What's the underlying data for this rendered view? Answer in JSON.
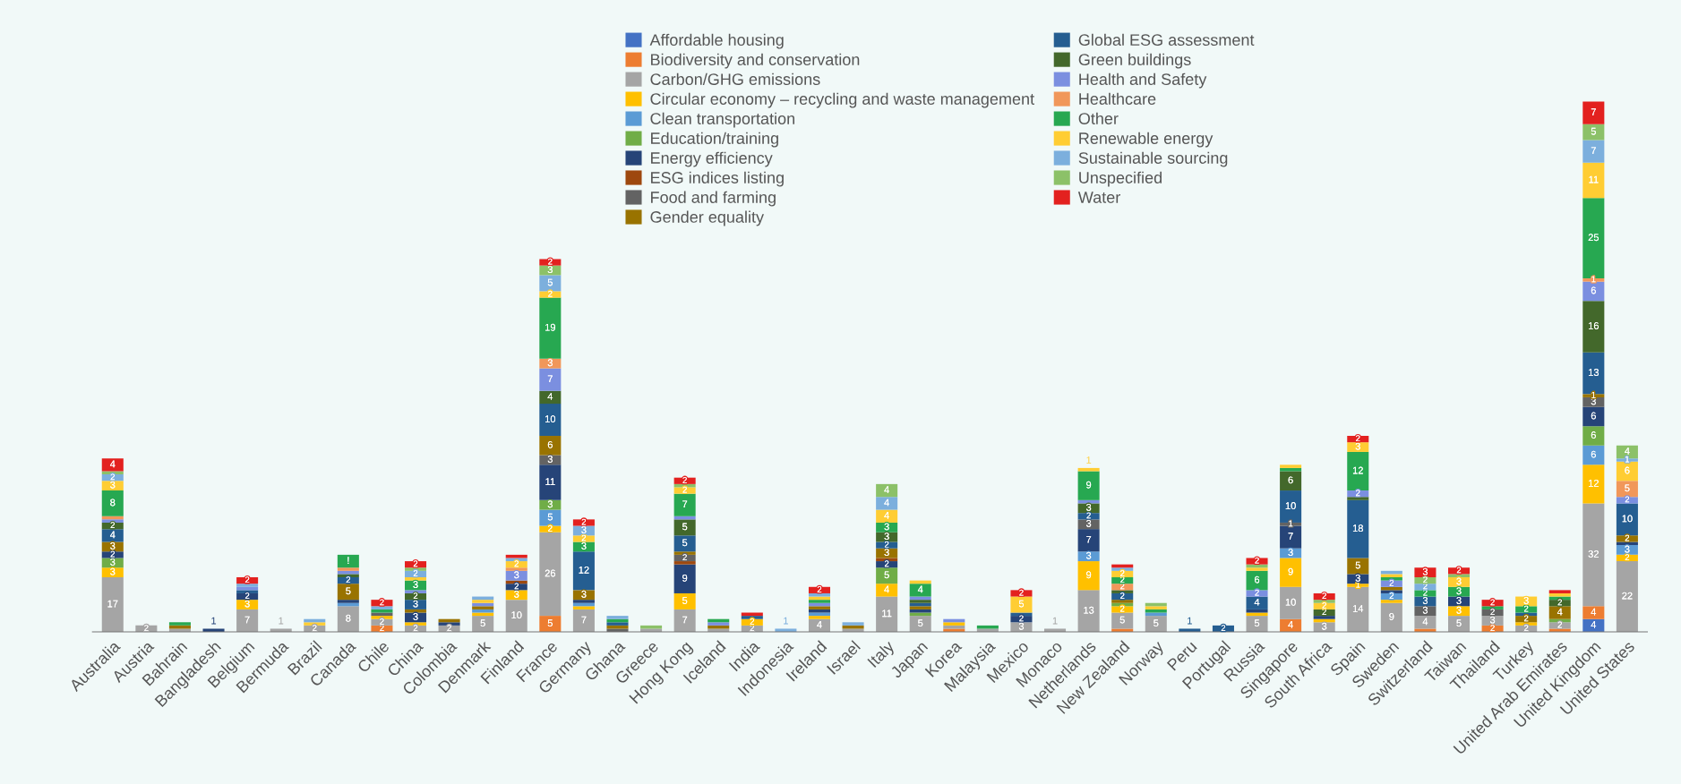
{
  "chart_data": {
    "type": "bar",
    "stacked": true,
    "legend": "top",
    "categories": [
      "Australia",
      "Austria",
      "Bahrain",
      "Bangladesh",
      "Belgium",
      "Bermuda",
      "Brazil",
      "Canada",
      "Chile",
      "China",
      "Colombia",
      "Denmark",
      "Finland",
      "France",
      "Germany",
      "Ghana",
      "Greece",
      "Hong Kong",
      "Iceland",
      "India",
      "Indonesia",
      "Ireland",
      "Israel",
      "Italy",
      "Japan",
      "Korea",
      "Malaysia",
      "Mexico",
      "Monaco",
      "Netherlands",
      "New Zealand",
      "Norway",
      "Peru",
      "Portugal",
      "Russia",
      "Singapore",
      "South Africa",
      "Spain",
      "Sweden",
      "Switzerland",
      "Taiwan",
      "Thailand",
      "Turkey",
      "United Arab Emirates",
      "United Kingdom",
      "United States"
    ],
    "series": [
      {
        "name": "Affordable housing",
        "color": "#4472c4",
        "values": [
          0,
          0,
          0,
          0,
          0,
          0,
          0,
          0,
          0,
          0,
          0,
          0,
          0,
          0,
          0,
          0,
          0,
          0,
          0,
          0,
          0,
          0,
          0,
          0,
          0,
          0,
          0,
          0,
          0,
          0,
          0,
          0,
          0,
          0,
          0,
          0,
          0,
          0,
          0,
          0,
          0,
          0,
          0,
          0,
          4,
          0
        ],
        "value_labels": [
          null,
          null,
          null,
          null,
          null,
          null,
          null,
          null,
          null,
          null,
          null,
          null,
          null,
          null,
          null,
          null,
          null,
          null,
          null,
          null,
          null,
          null,
          null,
          null,
          null,
          null,
          null,
          null,
          null,
          null,
          null,
          null,
          null,
          null,
          null,
          null,
          null,
          null,
          null,
          null,
          null,
          null,
          null,
          null,
          "4",
          null
        ]
      },
      {
        "name": "Biodiversity and conservation",
        "color": "#ed7d31",
        "values": [
          0,
          0,
          0,
          0,
          0,
          0,
          0,
          0,
          2,
          0,
          0,
          0,
          0,
          5,
          0,
          0,
          0,
          0,
          0,
          0,
          0,
          0,
          0,
          0,
          0,
          1,
          0,
          0,
          0,
          0,
          1,
          0,
          0,
          0,
          0,
          4,
          0,
          0,
          0,
          1,
          0,
          2,
          0,
          1,
          4,
          0
        ],
        "value_labels": [
          null,
          null,
          null,
          null,
          null,
          null,
          null,
          null,
          "2",
          null,
          null,
          null,
          null,
          "5",
          null,
          null,
          null,
          null,
          null,
          null,
          null,
          null,
          null,
          null,
          null,
          null,
          null,
          null,
          null,
          null,
          null,
          null,
          null,
          null,
          null,
          "4",
          null,
          null,
          null,
          null,
          null,
          "2",
          null,
          null,
          "4",
          null
        ]
      },
      {
        "name": "Carbon/GHG emissions",
        "color": "#a5a5a5",
        "values": [
          17,
          2,
          1,
          0,
          7,
          1,
          2,
          8,
          2,
          2,
          2,
          5,
          10,
          26,
          7,
          0,
          1,
          7,
          1,
          2,
          0,
          4,
          1,
          11,
          5,
          1,
          1,
          3,
          1,
          13,
          5,
          5,
          0,
          0,
          5,
          10,
          3,
          14,
          9,
          4,
          5,
          3,
          2,
          2,
          32,
          22
        ],
        "value_labels": [
          "17",
          "2",
          null,
          null,
          "7",
          "1",
          "2",
          "8",
          "2",
          "2",
          "2",
          "5",
          "10",
          "26",
          "7",
          null,
          null,
          "7",
          null,
          "2",
          null,
          "4",
          null,
          "11",
          "5",
          null,
          null,
          "3",
          "1",
          "13",
          "5",
          "5",
          null,
          null,
          "5",
          "10",
          "3",
          "14",
          "9",
          "4",
          "5",
          "3",
          "2",
          "2",
          "32",
          "22"
        ]
      },
      {
        "name": "Circular economy – recycling and waste management",
        "color": "#ffc000",
        "values": [
          3,
          0,
          0,
          0,
          3,
          0,
          0,
          0,
          1,
          1,
          0,
          1,
          3,
          2,
          1,
          0,
          0,
          5,
          0,
          2,
          0,
          1,
          0,
          4,
          0,
          1,
          0,
          0,
          0,
          9,
          2,
          0,
          0,
          0,
          1,
          9,
          1,
          1,
          1,
          0,
          3,
          0,
          1,
          0,
          12,
          2
        ],
        "value_labels": [
          "3",
          null,
          null,
          null,
          "3",
          null,
          null,
          null,
          null,
          null,
          null,
          null,
          "3",
          "2",
          null,
          null,
          null,
          "5",
          null,
          "2",
          null,
          null,
          null,
          "4",
          null,
          null,
          null,
          null,
          null,
          "9",
          "2",
          null,
          null,
          null,
          null,
          "9",
          null,
          "1",
          null,
          null,
          "3",
          null,
          null,
          null,
          "12",
          "2"
        ]
      },
      {
        "name": "Clean transportation",
        "color": "#5b9bd5",
        "values": [
          0,
          0,
          0,
          0,
          0,
          0,
          0,
          1,
          0,
          0,
          0,
          1,
          0,
          5,
          1,
          0,
          0,
          0,
          0,
          0,
          0,
          1,
          0,
          0,
          0,
          0,
          0,
          0,
          0,
          3,
          0,
          1,
          0,
          0,
          0,
          3,
          0,
          0,
          2,
          0,
          0,
          0,
          0,
          0,
          6,
          3
        ],
        "value_labels": [
          null,
          null,
          null,
          null,
          null,
          null,
          null,
          null,
          null,
          null,
          null,
          null,
          null,
          "5",
          null,
          null,
          null,
          null,
          null,
          null,
          null,
          null,
          null,
          null,
          null,
          null,
          null,
          null,
          null,
          "3",
          null,
          null,
          null,
          null,
          null,
          "3",
          null,
          null,
          "2",
          null,
          null,
          null,
          null,
          null,
          "6",
          "3"
        ]
      },
      {
        "name": "Education/training",
        "color": "#70ad47",
        "values": [
          3,
          0,
          0,
          0,
          0,
          0,
          0,
          0,
          0,
          0,
          0,
          0,
          0,
          3,
          0,
          0,
          0,
          0,
          0,
          0,
          0,
          0,
          0,
          5,
          1,
          0,
          0,
          0,
          0,
          0,
          1,
          0,
          0,
          0,
          0,
          0,
          0,
          0,
          0,
          0,
          0,
          0,
          0,
          1,
          6,
          0
        ],
        "value_labels": [
          "3",
          null,
          null,
          null,
          null,
          null,
          null,
          null,
          null,
          null,
          null,
          null,
          null,
          "3",
          null,
          null,
          null,
          null,
          null,
          null,
          null,
          null,
          null,
          "5",
          null,
          null,
          null,
          null,
          null,
          null,
          null,
          null,
          null,
          null,
          null,
          null,
          null,
          null,
          null,
          null,
          null,
          null,
          null,
          null,
          "6",
          null
        ]
      },
      {
        "name": "Energy efficiency",
        "color": "#264478",
        "values": [
          2,
          0,
          0,
          1,
          2,
          0,
          0,
          1,
          0,
          3,
          1,
          0,
          2,
          11,
          1,
          0,
          0,
          9,
          0,
          0,
          0,
          1,
          0,
          2,
          1,
          0,
          0,
          2,
          0,
          7,
          0,
          0,
          0,
          0,
          1,
          7,
          1,
          3,
          1,
          0,
          3,
          0,
          0,
          0,
          6,
          1
        ],
        "value_labels": [
          "2",
          null,
          null,
          "1",
          "2",
          null,
          null,
          null,
          null,
          "3",
          null,
          null,
          "2",
          "11",
          null,
          null,
          null,
          "9",
          null,
          null,
          null,
          null,
          null,
          "2",
          null,
          null,
          null,
          "2",
          null,
          "7",
          null,
          null,
          null,
          null,
          null,
          "7",
          null,
          "3",
          null,
          null,
          "3",
          null,
          null,
          null,
          "6",
          null
        ]
      },
      {
        "name": "ESG indices listing",
        "color": "#9e480e",
        "values": [
          0,
          0,
          0,
          0,
          0,
          0,
          0,
          0,
          0,
          0,
          0,
          0,
          1,
          0,
          0,
          0,
          0,
          1,
          0,
          0,
          0,
          0,
          0,
          1,
          0,
          0,
          0,
          0,
          0,
          0,
          0,
          0,
          0,
          0,
          0,
          0,
          0,
          0,
          0,
          0,
          0,
          0,
          0,
          0,
          0,
          0
        ],
        "value_labels": [
          null,
          null,
          null,
          null,
          null,
          null,
          null,
          null,
          null,
          null,
          null,
          null,
          null,
          null,
          null,
          null,
          null,
          null,
          null,
          null,
          null,
          null,
          null,
          null,
          null,
          null,
          null,
          null,
          null,
          null,
          null,
          null,
          null,
          null,
          null,
          null,
          null,
          null,
          null,
          null,
          null,
          null,
          null,
          null,
          null,
          null
        ]
      },
      {
        "name": "Food and farming",
        "color": "#636363",
        "values": [
          0,
          0,
          0,
          0,
          0,
          0,
          0,
          0,
          1,
          0,
          0,
          0,
          0,
          3,
          0,
          1,
          0,
          2,
          0,
          0,
          0,
          0,
          0,
          0,
          0,
          0,
          0,
          0,
          0,
          3,
          0,
          0,
          0,
          0,
          0,
          1,
          0,
          0,
          0,
          3,
          0,
          2,
          0,
          0,
          3,
          0
        ],
        "value_labels": [
          null,
          null,
          null,
          null,
          null,
          null,
          null,
          null,
          null,
          null,
          null,
          null,
          null,
          "3",
          null,
          null,
          null,
          "2",
          null,
          null,
          null,
          null,
          null,
          null,
          null,
          null,
          null,
          null,
          null,
          "3",
          null,
          null,
          null,
          null,
          null,
          "1",
          null,
          null,
          null,
          "3",
          null,
          "2",
          null,
          null,
          "3",
          null
        ]
      },
      {
        "name": "Gender equality",
        "color": "#997300",
        "values": [
          3,
          0,
          1,
          0,
          0,
          0,
          0,
          5,
          0,
          1,
          1,
          1,
          0,
          6,
          3,
          1,
          0,
          1,
          1,
          0,
          0,
          1,
          1,
          3,
          1,
          0,
          0,
          0,
          0,
          0,
          1,
          0,
          0,
          0,
          0,
          0,
          0,
          5,
          1,
          0,
          0,
          0,
          2,
          4,
          1,
          2
        ],
        "value_labels": [
          "3",
          null,
          null,
          null,
          null,
          null,
          null,
          "5",
          null,
          null,
          null,
          null,
          null,
          "6",
          "3",
          null,
          null,
          null,
          null,
          null,
          null,
          null,
          null,
          "3",
          null,
          null,
          null,
          null,
          null,
          null,
          null,
          null,
          null,
          null,
          null,
          null,
          null,
          "5",
          null,
          null,
          null,
          null,
          "2",
          "4",
          "1",
          "2"
        ]
      },
      {
        "name": "Global ESG assessment",
        "color": "#255e91",
        "values": [
          4,
          0,
          0,
          0,
          1,
          0,
          0,
          2,
          0,
          3,
          0,
          0,
          0,
          10,
          12,
          1,
          0,
          5,
          0,
          1,
          0,
          0,
          0,
          2,
          1,
          0,
          0,
          1,
          0,
          2,
          2,
          0,
          1,
          2,
          4,
          10,
          0,
          18,
          0,
          3,
          0,
          0,
          1,
          0,
          13,
          10
        ],
        "value_labels": [
          "4",
          null,
          null,
          null,
          null,
          null,
          null,
          "2",
          null,
          "3",
          null,
          null,
          null,
          "10",
          "12",
          null,
          null,
          "5",
          null,
          null,
          null,
          null,
          null,
          "2",
          null,
          null,
          null,
          null,
          null,
          "2",
          "2",
          null,
          "1",
          "2",
          "4",
          "10",
          null,
          "18",
          null,
          "3",
          null,
          null,
          null,
          null,
          "13",
          "10"
        ]
      },
      {
        "name": "Green buildings",
        "color": "#43682b",
        "values": [
          2,
          0,
          0,
          0,
          0,
          0,
          0,
          1,
          0,
          2,
          0,
          0,
          0,
          4,
          0,
          0,
          0,
          5,
          0,
          0,
          0,
          0,
          0,
          3,
          1,
          0,
          0,
          0,
          0,
          3,
          1,
          0,
          0,
          0,
          0,
          6,
          2,
          1,
          0,
          0,
          0,
          0,
          0,
          2,
          16,
          0
        ],
        "value_labels": [
          "2",
          null,
          null,
          null,
          null,
          null,
          null,
          null,
          null,
          "2",
          null,
          null,
          null,
          "4",
          null,
          null,
          null,
          "5",
          null,
          null,
          null,
          null,
          null,
          "3",
          null,
          null,
          null,
          null,
          null,
          "3",
          null,
          null,
          null,
          null,
          null,
          "6",
          "2",
          null,
          null,
          null,
          null,
          null,
          null,
          "2",
          "16",
          null
        ]
      },
      {
        "name": "Health and Safety",
        "color": "#7b8fe0",
        "values": [
          1,
          0,
          0,
          0,
          1,
          0,
          0,
          1,
          0,
          1,
          0,
          1,
          3,
          7,
          0,
          0,
          0,
          1,
          1,
          0,
          0,
          1,
          0,
          0,
          1,
          1,
          0,
          0,
          0,
          1,
          0,
          0,
          0,
          0,
          2,
          0,
          0,
          2,
          2,
          0,
          0,
          0,
          0,
          0,
          6,
          2
        ],
        "value_labels": [
          null,
          null,
          null,
          null,
          null,
          null,
          null,
          null,
          null,
          null,
          null,
          null,
          "3",
          "7",
          null,
          null,
          null,
          null,
          null,
          null,
          null,
          null,
          null,
          null,
          null,
          null,
          null,
          null,
          null,
          null,
          null,
          null,
          null,
          null,
          "2",
          null,
          null,
          "2",
          "2",
          null,
          null,
          null,
          null,
          null,
          "6",
          "2"
        ]
      },
      {
        "name": "Healthcare",
        "color": "#f1975a",
        "values": [
          1,
          0,
          0,
          0,
          0,
          0,
          0,
          1,
          0,
          0,
          0,
          0,
          1,
          3,
          0,
          0,
          0,
          0,
          0,
          0,
          0,
          0,
          0,
          0,
          0,
          0,
          0,
          0,
          0,
          0,
          2,
          0,
          0,
          0,
          0,
          0,
          0,
          0,
          0,
          0,
          0,
          0,
          0,
          0,
          1,
          5
        ],
        "value_labels": [
          null,
          null,
          null,
          null,
          null,
          null,
          null,
          null,
          null,
          null,
          null,
          null,
          null,
          "3",
          null,
          null,
          null,
          null,
          null,
          null,
          null,
          null,
          null,
          null,
          null,
          null,
          null,
          null,
          null,
          null,
          "2",
          null,
          null,
          null,
          null,
          null,
          null,
          null,
          null,
          null,
          null,
          null,
          null,
          null,
          "1",
          "5"
        ]
      },
      {
        "name": "Other",
        "color": "#27a851",
        "values": [
          8,
          0,
          1,
          0,
          0,
          0,
          0,
          4,
          1,
          3,
          0,
          0,
          0,
          19,
          3,
          1,
          0,
          7,
          1,
          0,
          0,
          1,
          0,
          3,
          4,
          0,
          1,
          0,
          0,
          9,
          2,
          1,
          0,
          0,
          6,
          1,
          0,
          12,
          1,
          2,
          3,
          1,
          2,
          1,
          25,
          0
        ],
        "value_labels": [
          "8",
          null,
          null,
          null,
          null,
          null,
          null,
          "!",
          null,
          "3",
          null,
          null,
          null,
          "19",
          "3",
          null,
          null,
          "7",
          null,
          null,
          null,
          null,
          null,
          "3",
          "4",
          null,
          null,
          null,
          null,
          "9",
          "2",
          null,
          null,
          null,
          "6",
          null,
          null,
          "12",
          null,
          "2",
          "3",
          null,
          "2",
          null,
          "25",
          null
        ]
      },
      {
        "name": "Renewable energy",
        "color": "#ffcd33",
        "values": [
          3,
          0,
          0,
          0,
          0,
          0,
          1,
          0,
          0,
          1,
          0,
          1,
          2,
          2,
          2,
          0,
          0,
          2,
          0,
          0,
          0,
          1,
          0,
          4,
          1,
          0,
          0,
          5,
          0,
          1,
          2,
          1,
          0,
          0,
          1,
          1,
          2,
          3,
          1,
          0,
          3,
          0,
          3,
          1,
          11,
          6
        ],
        "value_labels": [
          "3",
          null,
          null,
          null,
          null,
          null,
          null,
          null,
          null,
          null,
          null,
          null,
          "2",
          "2",
          "2",
          null,
          null,
          "2",
          null,
          null,
          null,
          null,
          null,
          "4",
          null,
          null,
          null,
          "5",
          null,
          "1",
          "2",
          null,
          null,
          null,
          null,
          null,
          "2",
          "3",
          null,
          null,
          "3",
          null,
          "3",
          null,
          "11",
          "6"
        ]
      },
      {
        "name": "Sustainable sourcing",
        "color": "#7cafdd",
        "values": [
          2,
          0,
          0,
          0,
          1,
          0,
          1,
          0,
          1,
          2,
          0,
          1,
          1,
          5,
          3,
          1,
          0,
          0,
          0,
          0,
          1,
          1,
          1,
          4,
          0,
          0,
          0,
          0,
          0,
          0,
          1,
          0,
          0,
          0,
          0,
          0,
          0,
          0,
          1,
          2,
          0,
          0,
          0,
          0,
          7,
          1
        ],
        "value_labels": [
          "2",
          null,
          null,
          null,
          null,
          null,
          null,
          null,
          null,
          "2",
          null,
          null,
          null,
          "5",
          "3",
          null,
          null,
          null,
          null,
          null,
          "1",
          null,
          null,
          "4",
          null,
          null,
          null,
          null,
          null,
          null,
          null,
          null,
          null,
          null,
          null,
          null,
          null,
          null,
          null,
          "2",
          null,
          null,
          null,
          null,
          "7",
          "1"
        ]
      },
      {
        "name": "Unspecified",
        "color": "#8cc168",
        "values": [
          1,
          0,
          0,
          0,
          0,
          0,
          0,
          0,
          0,
          1,
          0,
          0,
          0,
          3,
          0,
          0,
          1,
          1,
          0,
          0,
          0,
          0,
          0,
          4,
          0,
          0,
          0,
          0,
          0,
          0,
          0,
          1,
          0,
          0,
          1,
          0,
          1,
          0,
          0,
          2,
          1,
          0,
          0,
          0,
          5,
          4
        ],
        "value_labels": [
          null,
          null,
          null,
          null,
          null,
          null,
          null,
          null,
          null,
          null,
          null,
          null,
          null,
          "3",
          null,
          null,
          null,
          null,
          null,
          null,
          null,
          null,
          null,
          "4",
          null,
          null,
          null,
          null,
          null,
          null,
          null,
          null,
          null,
          null,
          null,
          null,
          null,
          null,
          null,
          "2",
          null,
          null,
          null,
          null,
          "5",
          "4"
        ]
      },
      {
        "name": "Water",
        "color": "#e3211f",
        "values": [
          4,
          0,
          0,
          0,
          2,
          0,
          0,
          0,
          2,
          2,
          0,
          0,
          1,
          2,
          2,
          0,
          0,
          2,
          0,
          1,
          0,
          2,
          0,
          0,
          0,
          0,
          0,
          2,
          0,
          0,
          1,
          0,
          0,
          0,
          2,
          0,
          2,
          2,
          0,
          3,
          2,
          2,
          0,
          1,
          7,
          0
        ],
        "value_labels": [
          "4",
          null,
          null,
          null,
          "2",
          null,
          null,
          null,
          "2",
          "2",
          null,
          null,
          null,
          "2",
          "2",
          null,
          null,
          "2",
          null,
          null,
          null,
          "2",
          null,
          null,
          null,
          null,
          null,
          "2",
          null,
          null,
          null,
          null,
          null,
          null,
          "2",
          null,
          "2",
          "2",
          null,
          "3",
          "2",
          "2",
          null,
          null,
          "7",
          null
        ]
      }
    ]
  }
}
